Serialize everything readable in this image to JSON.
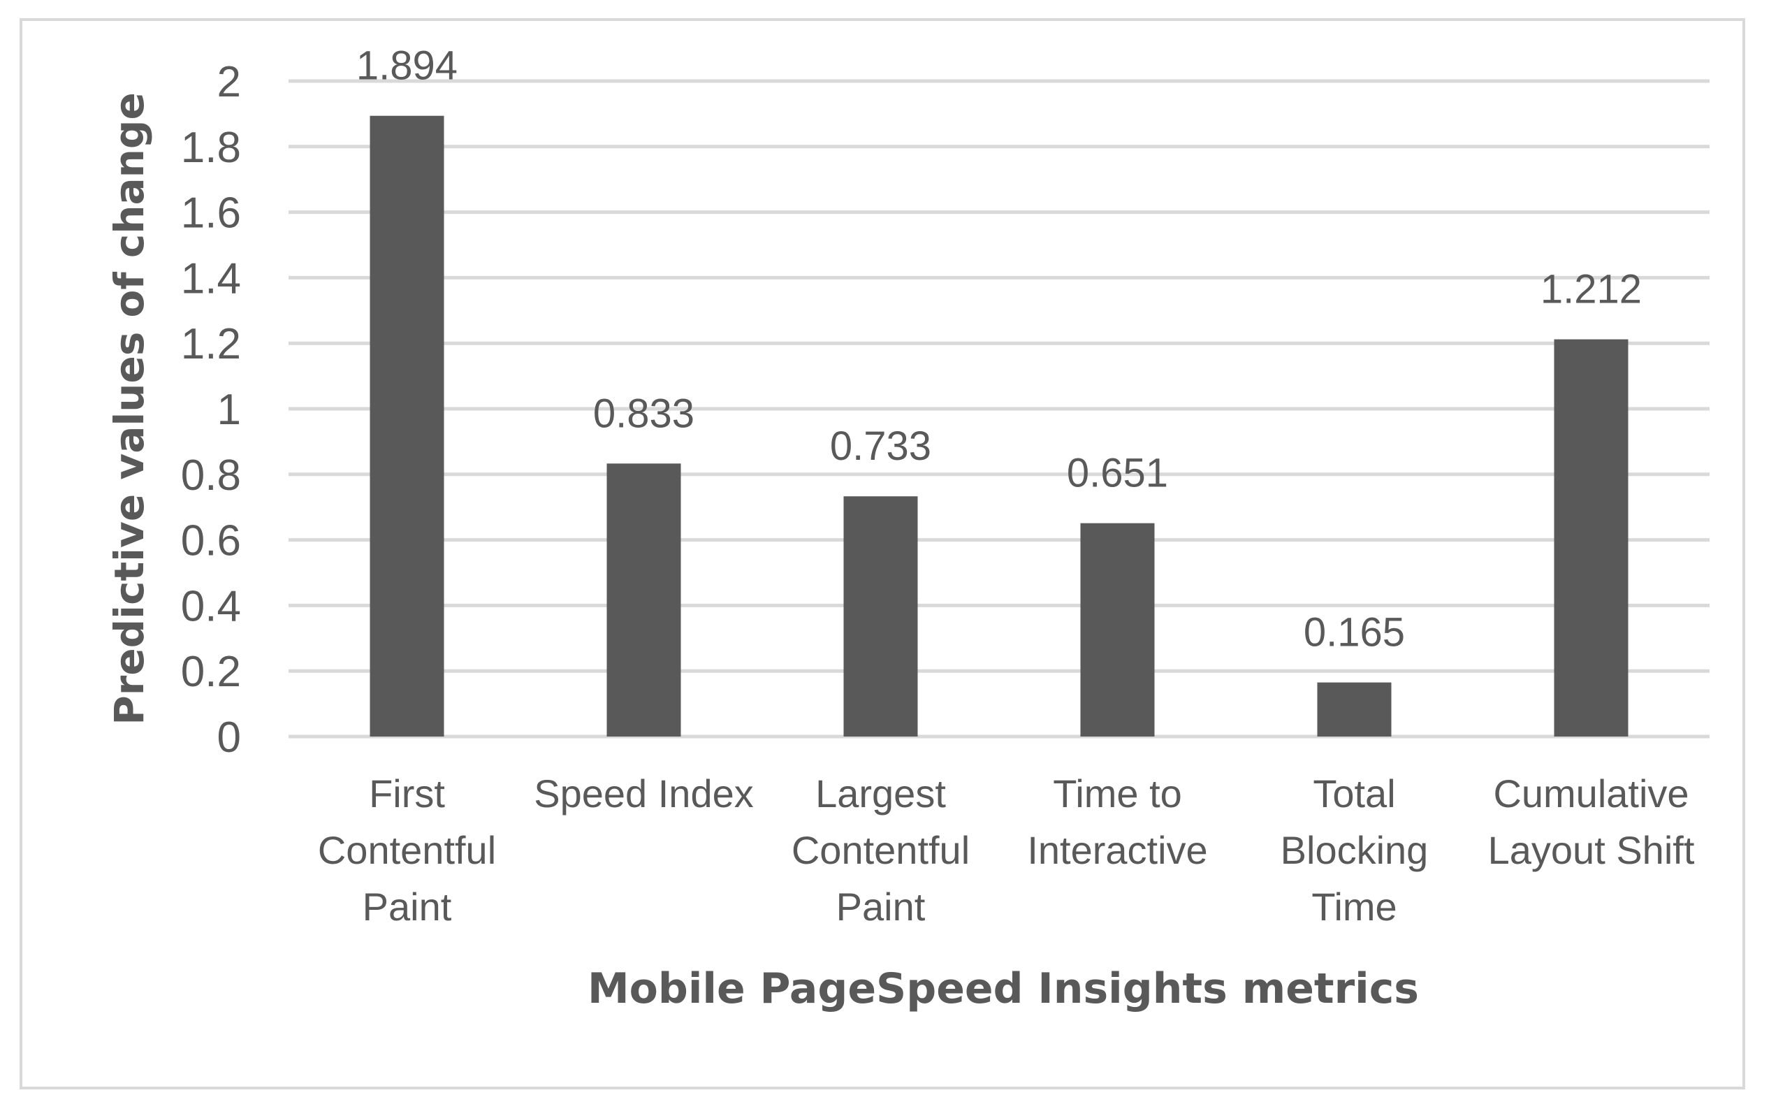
{
  "chart_data": {
    "type": "bar",
    "title": "",
    "xlabel": "Mobile PageSpeed Insights metrics",
    "ylabel": "Predictive values of change",
    "ylim": [
      0,
      2
    ],
    "yticks": [
      0,
      0.2,
      0.4,
      0.6,
      0.8,
      1,
      1.2,
      1.4,
      1.6,
      1.8,
      2
    ],
    "ytick_labels": [
      "0",
      "0.2",
      "0.4",
      "0.6",
      "0.8",
      "1",
      "1.2",
      "1.4",
      "1.6",
      "1.8",
      "2"
    ],
    "grid": true,
    "legend": "none",
    "categories": [
      [
        "First",
        "Contentful",
        "Paint"
      ],
      [
        "Speed Index"
      ],
      [
        "Largest",
        "Contentful",
        "Paint"
      ],
      [
        "Time to",
        "Interactive"
      ],
      [
        "Total",
        "Blocking",
        "Time"
      ],
      [
        "Cumulative",
        "Layout Shift"
      ]
    ],
    "values": [
      1.894,
      0.833,
      0.733,
      0.651,
      0.165,
      1.212
    ],
    "data_labels": [
      "1.894",
      "0.833",
      "0.733",
      "0.651",
      "0.165",
      "1.212"
    ],
    "bar_color": "#595959",
    "grid_color": "#d9d9d9",
    "text_color": "#595959"
  }
}
